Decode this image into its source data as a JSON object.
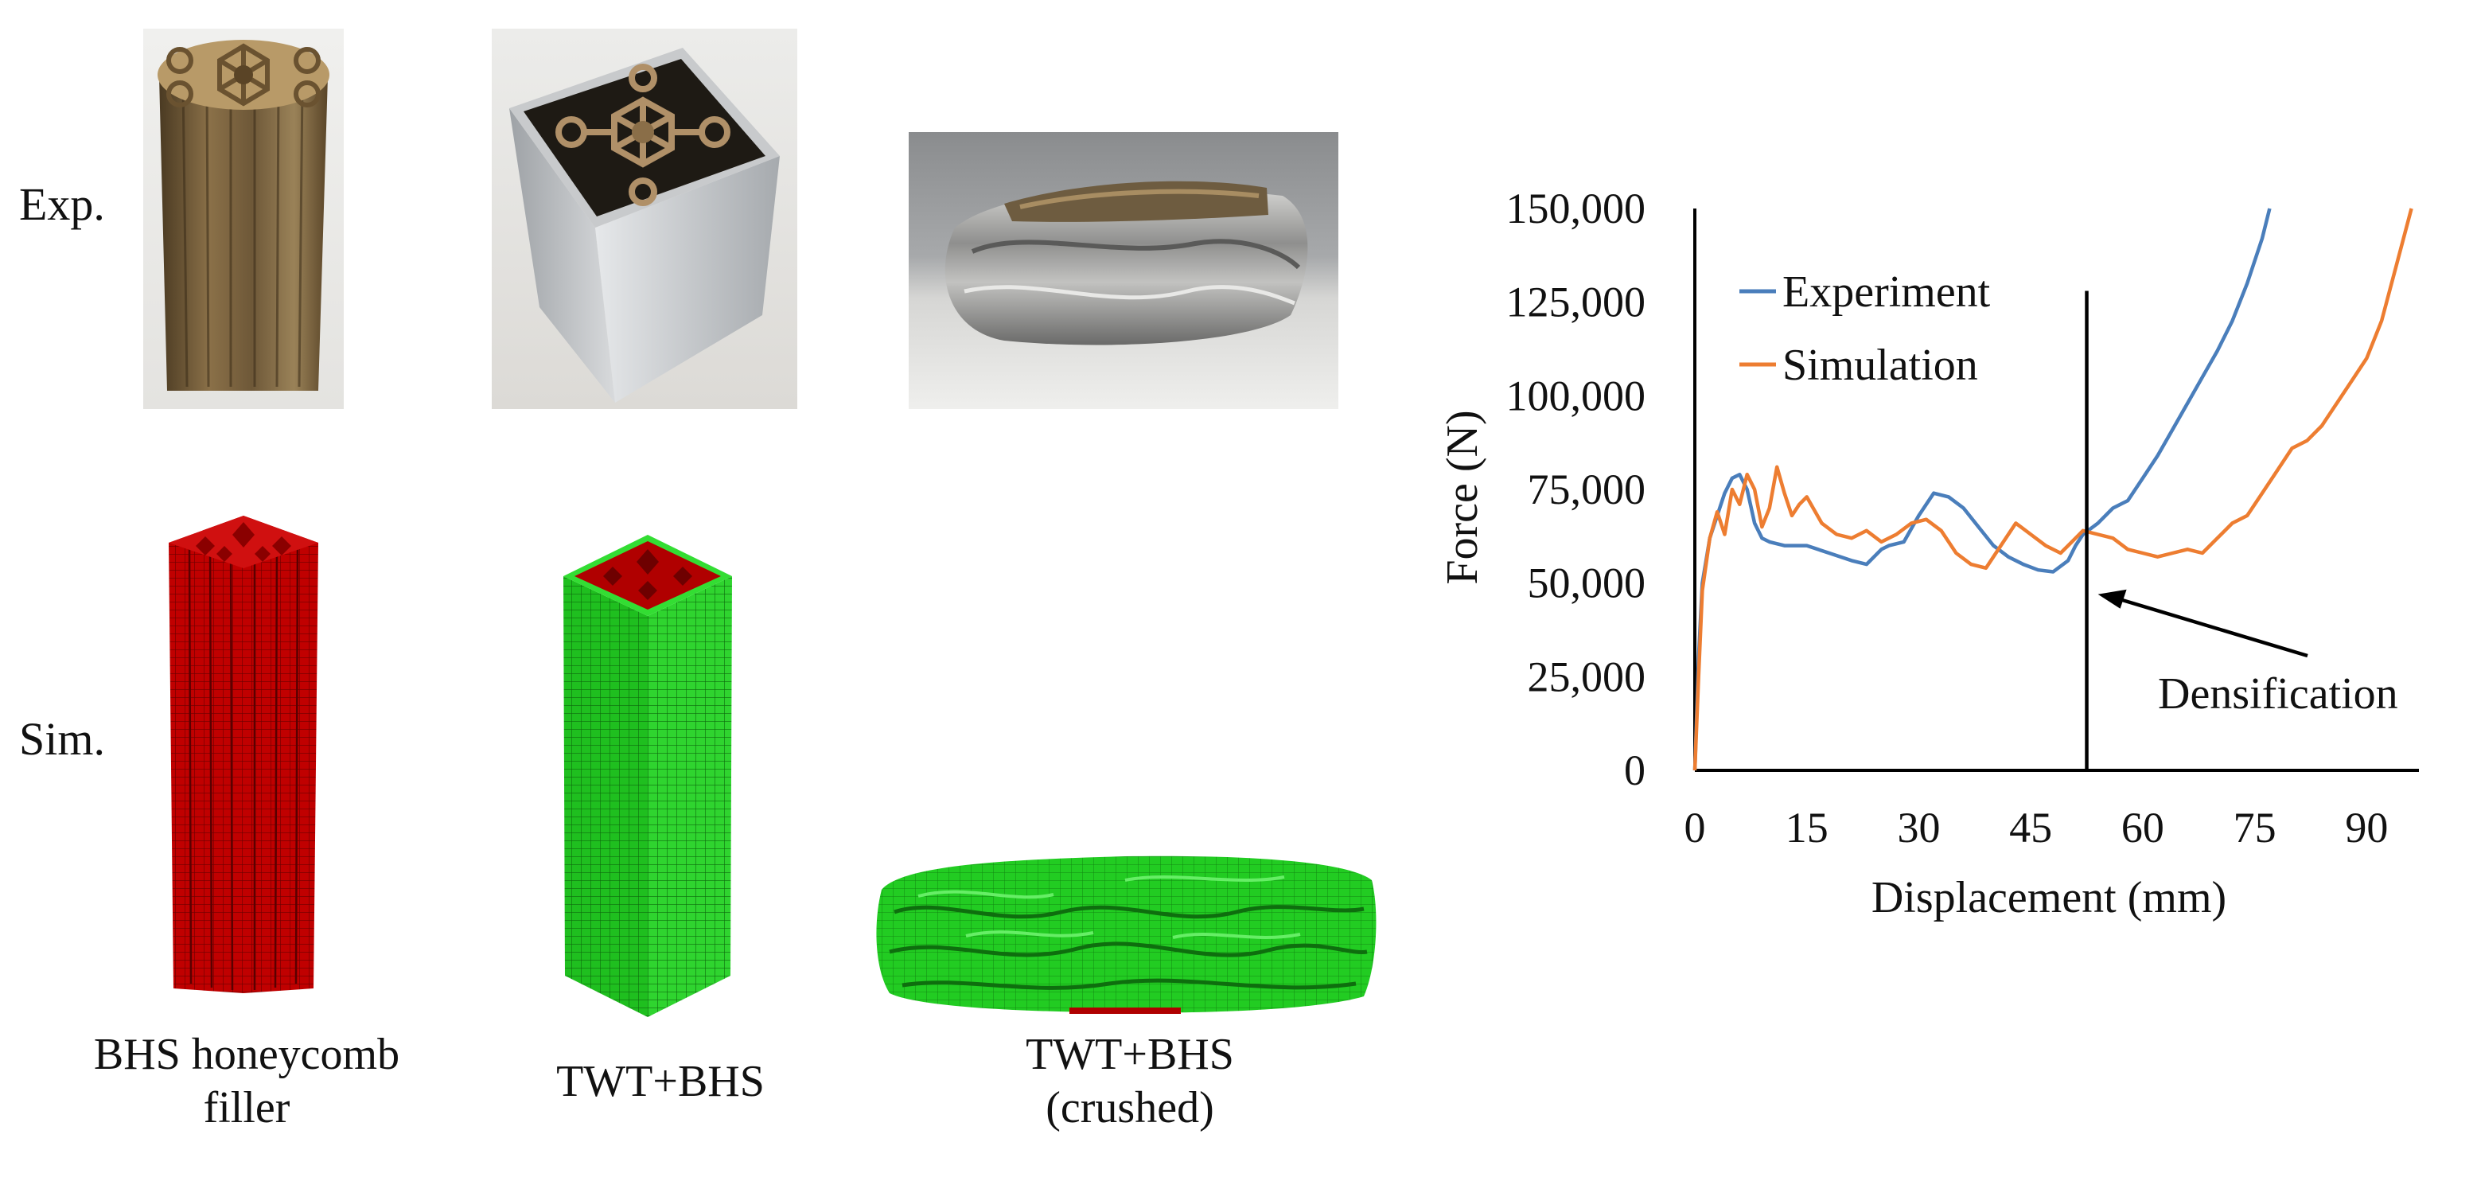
{
  "row_labels": {
    "experiment": "Exp.",
    "simulation": "Sim."
  },
  "captions": {
    "filler_line1": "BHS honeycomb",
    "filler_line2": "filler",
    "tube": "TWT+BHS",
    "crushed_line1": "TWT+BHS",
    "crushed_line2": "(crushed)"
  },
  "colors": {
    "experiment": "#4a7ebb",
    "simulation": "#ed7d31",
    "filler_red": "#c00000",
    "tube_green": "#22cc22"
  },
  "chart_data": {
    "type": "line",
    "xlabel": "Displacement (mm)",
    "ylabel": "Force (N)",
    "xlim": [
      0,
      97
    ],
    "ylim": [
      0,
      150000
    ],
    "x_ticks": [
      0,
      15,
      30,
      45,
      60,
      75,
      90
    ],
    "y_ticks": [
      0,
      25000,
      50000,
      75000,
      100000,
      125000,
      150000
    ],
    "x_tick_labels": [
      "0",
      "15",
      "30",
      "45",
      "60",
      "75",
      "90"
    ],
    "y_tick_labels": [
      "0",
      "25,000",
      "50,000",
      "75,000",
      "100,000",
      "125,000",
      "150,000"
    ],
    "legend": "top-left",
    "grid": false,
    "series": [
      {
        "name": "Experiment",
        "color": "#4a7ebb",
        "x": [
          0,
          0.5,
          1,
          2,
          3,
          4,
          5,
          6,
          7,
          8,
          9,
          10,
          12,
          15,
          18,
          21,
          23,
          24,
          25,
          26,
          28,
          30,
          32,
          34,
          36,
          38,
          40,
          42,
          44,
          46,
          48,
          50,
          51,
          52,
          54,
          56,
          58,
          60,
          62,
          64,
          66,
          68,
          70,
          72,
          74,
          76,
          77
        ],
        "y": [
          0,
          30000,
          50000,
          62000,
          68000,
          74000,
          78000,
          79000,
          75000,
          66000,
          62000,
          61000,
          60000,
          60000,
          58000,
          56000,
          55000,
          57000,
          59000,
          60000,
          61000,
          68000,
          74000,
          73000,
          70000,
          65000,
          60000,
          57000,
          55000,
          53500,
          53000,
          56000,
          60000,
          63000,
          66000,
          70000,
          72000,
          78000,
          84000,
          91000,
          98000,
          105000,
          112000,
          120000,
          130000,
          142000,
          150000
        ]
      },
      {
        "name": "Simulation",
        "color": "#ed7d31",
        "x": [
          0,
          0.5,
          1,
          2,
          3,
          4,
          5,
          6,
          7,
          8,
          9,
          10,
          11,
          12,
          13,
          14,
          15,
          17,
          19,
          21,
          23,
          25,
          27,
          29,
          31,
          33,
          35,
          37,
          39,
          41,
          43,
          45,
          47,
          49,
          50,
          51,
          52,
          54,
          56,
          58,
          60,
          62,
          64,
          66,
          68,
          70,
          72,
          74,
          76,
          78,
          80,
          82,
          84,
          86,
          88,
          90,
          92,
          94,
          96
        ],
        "y": [
          0,
          25000,
          48000,
          62000,
          69000,
          63000,
          75000,
          71000,
          79000,
          75000,
          65000,
          70000,
          81000,
          74000,
          68000,
          71000,
          73000,
          66000,
          63000,
          62000,
          64000,
          61000,
          63000,
          66000,
          67000,
          64000,
          58000,
          55000,
          54000,
          60000,
          66000,
          63000,
          60000,
          58000,
          60000,
          62000,
          64000,
          63000,
          62000,
          59000,
          58000,
          57000,
          58000,
          59000,
          58000,
          62000,
          66000,
          68000,
          74000,
          80000,
          86000,
          88000,
          92000,
          98000,
          104000,
          110000,
          120000,
          135000,
          150000
        ]
      }
    ],
    "annotations": [
      {
        "text": "Densification",
        "vertical_line_x": 52.5,
        "vertical_line_top_y": 128000,
        "arrow_target_x": 54,
        "arrow_target_y": 47000
      }
    ]
  }
}
